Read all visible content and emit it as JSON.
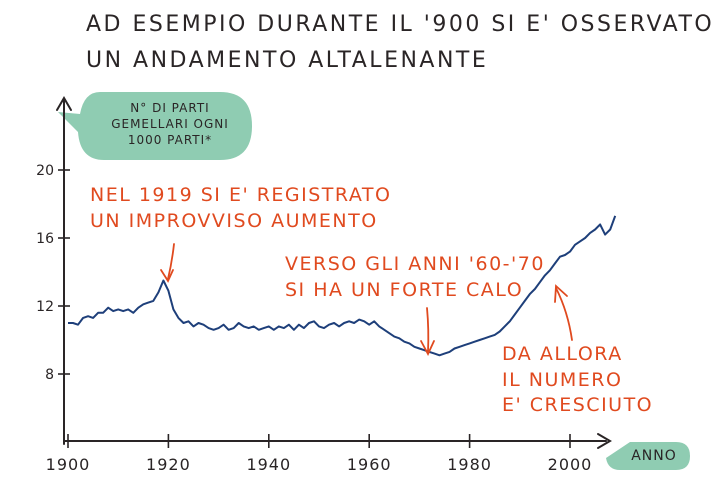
{
  "title": {
    "line1": "AD ESEMPIO DURANTE IL '900 SI E' OSSERVATO",
    "line2": "UN ANDAMENTO ALTALENANTE"
  },
  "y_axis_bubble": [
    "N° DI PARTI",
    "GEMELLARI OGNI",
    "1000 PARTI*"
  ],
  "x_axis_label": "ANNO",
  "annotations": {
    "peak_1919": [
      "NEL 1919 SI E' REGISTRATO",
      "UN IMPROVVISO AUMENTO"
    ],
    "drop_60s_70s": [
      "VERSO GLI ANNI '60-'70",
      "SI HA UN FORTE CALO"
    ],
    "rise_since": [
      "DA ALLORA",
      "IL NUMERO",
      "E' CRESCIUTO"
    ]
  },
  "colors": {
    "line": "#1e3f7a",
    "annotation": "#e04a1f",
    "bubble": "#8fccb2",
    "axis": "#2a2526"
  },
  "chart_data": {
    "type": "line",
    "title": "AD ESEMPIO DURANTE IL '900 SI E' OSSERVATO UN ANDAMENTO ALTALENANTE",
    "xlabel": "ANNO",
    "ylabel": "N° DI PARTI GEMELLARI OGNI 1000 PARTI*",
    "x_ticks": [
      1900,
      1920,
      1940,
      1960,
      1980,
      2000
    ],
    "x_tick_labels": [
      "1900",
      "1920",
      "1940",
      "1960",
      "1980",
      "2000"
    ],
    "y_ticks": [
      8,
      12,
      16,
      20
    ],
    "y_tick_labels": [
      "8",
      "12",
      "16",
      "20"
    ],
    "xlim": [
      1900,
      2010
    ],
    "ylim": [
      5.5,
      21
    ],
    "grid": false,
    "x": [
      1900,
      1901,
      1902,
      1903,
      1904,
      1905,
      1906,
      1907,
      1908,
      1909,
      1910,
      1911,
      1912,
      1913,
      1914,
      1915,
      1916,
      1917,
      1918,
      1919,
      1920,
      1921,
      1922,
      1923,
      1924,
      1925,
      1926,
      1927,
      1928,
      1929,
      1930,
      1931,
      1932,
      1933,
      1934,
      1935,
      1936,
      1937,
      1938,
      1939,
      1940,
      1941,
      1942,
      1943,
      1944,
      1945,
      1946,
      1947,
      1948,
      1949,
      1950,
      1951,
      1952,
      1953,
      1954,
      1955,
      1956,
      1957,
      1958,
      1959,
      1960,
      1961,
      1962,
      1963,
      1964,
      1965,
      1966,
      1967,
      1968,
      1969,
      1970,
      1971,
      1972,
      1973,
      1974,
      1975,
      1976,
      1977,
      1978,
      1979,
      1980,
      1981,
      1982,
      1983,
      1984,
      1985,
      1986,
      1987,
      1988,
      1989,
      1990,
      1991,
      1992,
      1993,
      1994,
      1995,
      1996,
      1997,
      1998,
      1999,
      2000,
      2001,
      2002,
      2003,
      2004,
      2005,
      2006,
      2007,
      2008,
      2009
    ],
    "y": [
      11.0,
      11.0,
      10.9,
      11.3,
      11.4,
      11.3,
      11.6,
      11.6,
      11.9,
      11.7,
      11.8,
      11.7,
      11.8,
      11.6,
      11.9,
      12.1,
      12.2,
      12.3,
      12.8,
      13.5,
      12.9,
      11.8,
      11.3,
      11.0,
      11.1,
      10.8,
      11.0,
      10.9,
      10.7,
      10.6,
      10.7,
      10.9,
      10.6,
      10.7,
      11.0,
      10.8,
      10.7,
      10.8,
      10.6,
      10.7,
      10.8,
      10.6,
      10.8,
      10.7,
      10.9,
      10.6,
      10.9,
      10.7,
      11.0,
      11.1,
      10.8,
      10.7,
      10.9,
      11.0,
      10.8,
      11.0,
      11.1,
      11.0,
      11.2,
      11.1,
      10.9,
      11.1,
      10.8,
      10.6,
      10.4,
      10.2,
      10.1,
      9.9,
      9.8,
      9.6,
      9.5,
      9.4,
      9.3,
      9.2,
      9.1,
      9.2,
      9.3,
      9.5,
      9.6,
      9.7,
      9.8,
      9.9,
      10.0,
      10.1,
      10.2,
      10.3,
      10.5,
      10.8,
      11.1,
      11.5,
      11.9,
      12.3,
      12.7,
      13.0,
      13.4,
      13.8,
      14.1,
      14.5,
      14.9,
      15.0,
      15.2,
      15.6,
      15.8,
      16.0,
      16.3,
      16.5,
      16.8,
      16.2,
      16.5,
      17.3
    ]
  }
}
